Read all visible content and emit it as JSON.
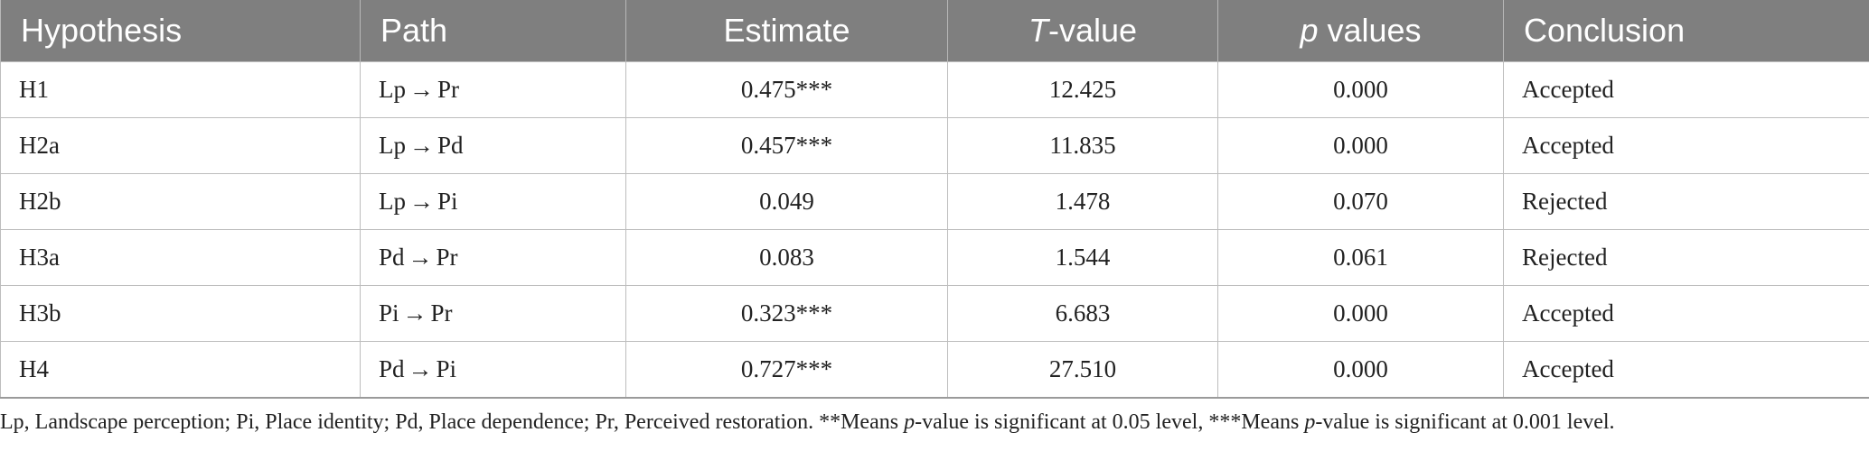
{
  "table": {
    "headers": {
      "hypothesis": "Hypothesis",
      "path": "Path",
      "estimate": "Estimate",
      "t_value_italic": "T",
      "t_value_rest": "-value",
      "p_italic": "p",
      "p_rest": " values",
      "conclusion": "Conclusion"
    },
    "rows": [
      {
        "hypothesis": "H1",
        "path_from": "Lp",
        "arrow": "→",
        "path_to": "Pr",
        "estimate": "0.475***",
        "t_value": "12.425",
        "p_value": "0.000",
        "conclusion": "Accepted"
      },
      {
        "hypothesis": "H2a",
        "path_from": "Lp",
        "arrow": "→",
        "path_to": "Pd",
        "estimate": "0.457***",
        "t_value": "11.835",
        "p_value": "0.000",
        "conclusion": "Accepted"
      },
      {
        "hypothesis": "H2b",
        "path_from": "Lp",
        "arrow": "→",
        "path_to": "Pi",
        "estimate": "0.049",
        "t_value": "1.478",
        "p_value": "0.070",
        "conclusion": "Rejected"
      },
      {
        "hypothesis": "H3a",
        "path_from": "Pd",
        "arrow": "→",
        "path_to": "Pr",
        "estimate": "0.083",
        "t_value": "1.544",
        "p_value": "0.061",
        "conclusion": "Rejected"
      },
      {
        "hypothesis": "H3b",
        "path_from": "Pi",
        "arrow": "→",
        "path_to": "Pr",
        "estimate": "0.323***",
        "t_value": "6.683",
        "p_value": "0.000",
        "conclusion": "Accepted"
      },
      {
        "hypothesis": "H4",
        "path_from": "Pd",
        "arrow": "→",
        "path_to": "Pi",
        "estimate": "0.727***",
        "t_value": "27.510",
        "p_value": "0.000",
        "conclusion": "Accepted"
      }
    ]
  },
  "footnote": {
    "part1": "Lp, Landscape perception; Pi, Place identity; Pd, Place dependence; Pr, Perceived restoration. **Means ",
    "p1": "p",
    "part2": "-value is significant at 0.05 level, ***Means ",
    "p2": "p",
    "part3": "-value is significant at 0.001 level."
  },
  "colors": {
    "header_bg": "#7f7f7f",
    "header_text": "#ffffff",
    "grid": "#bdbdbd"
  }
}
